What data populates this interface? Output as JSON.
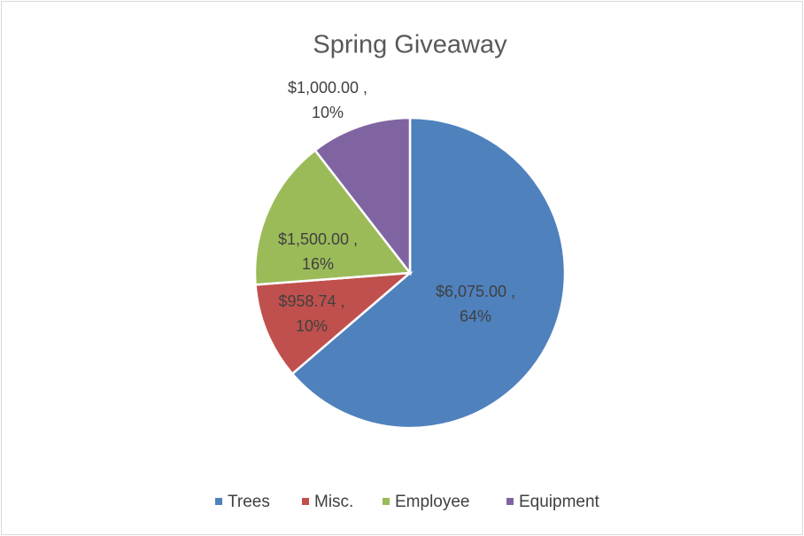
{
  "chart_data": {
    "type": "pie",
    "title": "Spring Giveaway",
    "categories": [
      "Trees",
      "Misc.",
      "Employee",
      "Equipment"
    ],
    "values": [
      6075,
      958.74,
      1500,
      1000
    ],
    "value_labels": [
      "$6,075.00 ,",
      "$958.74 ,",
      "$1,500.00 ,",
      "$1,000.00 ,"
    ],
    "percents": [
      64,
      10,
      16,
      10
    ],
    "percent_labels": [
      "64%",
      "10%",
      "16%",
      "10%"
    ],
    "colors": [
      "#4f81bd",
      "#c0504d",
      "#9bbb59",
      "#8064a2"
    ],
    "legend": "bottom"
  }
}
